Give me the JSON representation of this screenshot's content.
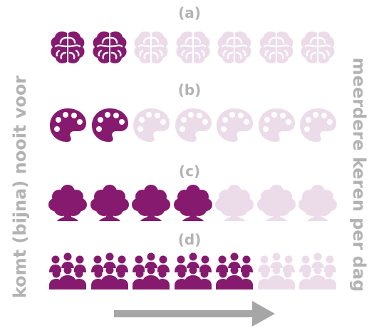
{
  "left_label": "komt (bijna) nooit voor",
  "right_label": "meerdere keren per dag",
  "colors": {
    "filled": "#861a6f",
    "empty": "#ecdcea",
    "text": "#b3b3b3",
    "arrow": "#a6a6a6"
  },
  "rows": [
    {
      "label": "(a)",
      "icon": "brain-icon",
      "filled": 2,
      "total": 7
    },
    {
      "label": "(b)",
      "icon": "palette-icon",
      "filled": 2,
      "total": 7
    },
    {
      "label": "(c)",
      "icon": "tree-icon",
      "filled": 4,
      "total": 7
    },
    {
      "label": "(d)",
      "icon": "people-group-icon",
      "filled": 5,
      "total": 7
    }
  ]
}
